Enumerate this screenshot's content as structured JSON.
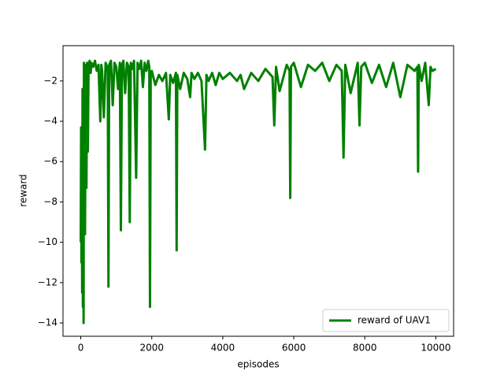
{
  "chart_data": {
    "type": "line",
    "xlabel": "episodes",
    "ylabel": "reward",
    "xlim": [
      -500,
      10500
    ],
    "ylim": [
      -14.66,
      -0.25
    ],
    "xticks": [
      0,
      2000,
      4000,
      6000,
      8000,
      10000
    ],
    "yticks": [
      {
        "value": -14,
        "label": "−14"
      },
      {
        "value": -12,
        "label": "−12"
      },
      {
        "value": -10,
        "label": "−10"
      },
      {
        "value": -8,
        "label": "−8"
      },
      {
        "value": -6,
        "label": "−6"
      },
      {
        "value": -4,
        "label": "−4"
      },
      {
        "value": -2,
        "label": "−2"
      }
    ],
    "legend": "lower right",
    "x": [
      0,
      10,
      20,
      30,
      40,
      50,
      60,
      70,
      80,
      90,
      100,
      110,
      120,
      140,
      160,
      180,
      200,
      220,
      250,
      280,
      300,
      350,
      400,
      450,
      500,
      550,
      580,
      600,
      650,
      700,
      760,
      780,
      800,
      850,
      900,
      950,
      1000,
      1050,
      1100,
      1130,
      1160,
      1200,
      1250,
      1300,
      1350,
      1380,
      1410,
      1450,
      1500,
      1560,
      1600,
      1650,
      1700,
      1750,
      1800,
      1850,
      1900,
      1930,
      1950,
      1970,
      2000,
      2100,
      2200,
      2300,
      2400,
      2480,
      2520,
      2600,
      2680,
      2700,
      2720,
      2800,
      2900,
      3000,
      3080,
      3120,
      3200,
      3300,
      3400,
      3500,
      3540,
      3600,
      3700,
      3800,
      3900,
      4000,
      4200,
      4400,
      4500,
      4600,
      4800,
      5000,
      5200,
      5400,
      5450,
      5500,
      5600,
      5800,
      5880,
      5900,
      5920,
      6000,
      6200,
      6400,
      6600,
      6800,
      7000,
      7200,
      7350,
      7400,
      7450,
      7600,
      7800,
      7850,
      7900,
      8000,
      8200,
      8400,
      8600,
      8800,
      9000,
      9200,
      9400,
      9480,
      9500,
      9520,
      9600,
      9700,
      9800,
      9850,
      9900,
      10000
    ],
    "series": [
      {
        "name": "reward of UAV1",
        "color": "#008000",
        "values": [
          -10,
          -4.3,
          -11,
          -6.7,
          -12.5,
          -2.4,
          -13.2,
          -3,
          -14,
          -1.1,
          -9,
          -1.3,
          -9.6,
          -1.2,
          -7.3,
          -1.1,
          -5.5,
          -1.2,
          -1.0,
          -1.6,
          -1.1,
          -1.3,
          -1.0,
          -1.5,
          -1.2,
          -4.0,
          -1.2,
          -1.5,
          -3.8,
          -1.1,
          -1.4,
          -12.2,
          -1.2,
          -1.0,
          -3.2,
          -1.1,
          -1.3,
          -2.4,
          -1.1,
          -9.4,
          -1.2,
          -1.0,
          -2.6,
          -1.1,
          -1.3,
          -9.0,
          -1.1,
          -1.4,
          -1.0,
          -6.8,
          -1.1,
          -1.4,
          -1.0,
          -2.3,
          -1.1,
          -1.5,
          -1.0,
          -1.3,
          -13.2,
          -1.6,
          -1.5,
          -2.2,
          -1.7,
          -2.0,
          -1.6,
          -3.9,
          -1.7,
          -2.1,
          -1.6,
          -10.4,
          -1.7,
          -2.4,
          -1.6,
          -1.9,
          -2.8,
          -1.6,
          -1.9,
          -1.6,
          -2.0,
          -5.4,
          -1.7,
          -2.0,
          -1.6,
          -2.2,
          -1.6,
          -1.9,
          -1.6,
          -2.0,
          -1.7,
          -2.4,
          -1.6,
          -2.0,
          -1.4,
          -1.8,
          -4.2,
          -1.3,
          -2.5,
          -1.2,
          -1.5,
          -7.8,
          -1.3,
          -1.1,
          -2.3,
          -1.2,
          -1.5,
          -1.1,
          -2.0,
          -1.2,
          -1.5,
          -5.8,
          -1.2,
          -2.6,
          -1.1,
          -4.2,
          -1.3,
          -1.1,
          -2.1,
          -1.2,
          -2.3,
          -1.1,
          -2.8,
          -1.2,
          -1.5,
          -1.3,
          -6.5,
          -1.2,
          -2.0,
          -1.1,
          -3.2,
          -1.3,
          -1.5,
          -1.4
        ]
      }
    ]
  }
}
